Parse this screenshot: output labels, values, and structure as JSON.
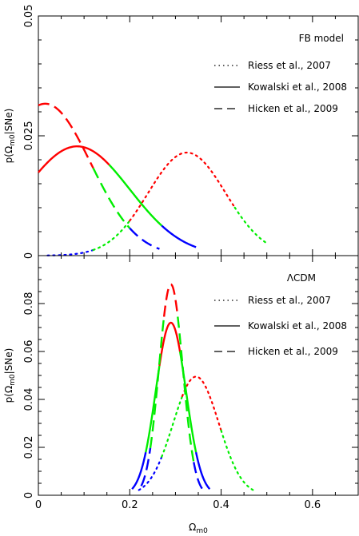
{
  "chart_data": [
    {
      "type": "line",
      "panel_label": "FB model",
      "ylabel": "p(Ω_m0|SNe)",
      "xlim": [
        0,
        0.7
      ],
      "ylim": [
        0,
        0.05
      ],
      "y_ticks": [
        "0",
        "0.025",
        "0.05"
      ],
      "x_ticks": [],
      "legend": [
        {
          "label": "Riess et al., 2007",
          "style": "dotted"
        },
        {
          "label": "Kowalski et al., 2008",
          "style": "solid"
        },
        {
          "label": "Hicken et al., 2009",
          "style": "dashed"
        }
      ],
      "series": [
        {
          "style": "dotted",
          "mean": 0.325,
          "sigma": 0.085,
          "peak": 0.0215,
          "xmin": 0.02,
          "xmax": 0.5,
          "segments": [
            {
              "from": 0.02,
              "to": 0.12,
              "color": "#0000ff"
            },
            {
              "from": 0.12,
              "to": 0.2,
              "color": "#00ee00"
            },
            {
              "from": 0.2,
              "to": 0.43,
              "color": "#ff0000"
            },
            {
              "from": 0.43,
              "to": 0.5,
              "color": "#00ee00"
            }
          ]
        },
        {
          "style": "solid",
          "mean": 0.085,
          "sigma": 0.115,
          "peak": 0.0228,
          "xmin": 0.0,
          "xmax": 0.345,
          "segments": [
            {
              "from": 0.0,
              "to": 0.155,
              "color": "#ff0000"
            },
            {
              "from": 0.155,
              "to": 0.27,
              "color": "#00ee00"
            },
            {
              "from": 0.27,
              "to": 0.345,
              "color": "#0000ff"
            }
          ]
        },
        {
          "style": "dashed",
          "mean": 0.015,
          "sigma": 0.1,
          "peak": 0.0317,
          "xmin": 0.0,
          "xmax": 0.265,
          "segments": [
            {
              "from": 0.0,
              "to": 0.12,
              "color": "#ff0000"
            },
            {
              "from": 0.12,
              "to": 0.2,
              "color": "#00ee00"
            },
            {
              "from": 0.2,
              "to": 0.265,
              "color": "#0000ff"
            }
          ]
        }
      ]
    },
    {
      "type": "line",
      "panel_label": "ΛCDM",
      "ylabel": "p(Ω_m0|SNe)",
      "xlabel": "Ω_m0",
      "xlim": [
        0,
        0.7
      ],
      "ylim": [
        0,
        0.1
      ],
      "y_ticks": [
        "0",
        "0.02",
        "0.04",
        "0.06",
        "0.08"
      ],
      "x_ticks": [
        "0",
        "0.2",
        "0.4",
        "0.6"
      ],
      "legend": [
        {
          "label": "Riess et al., 2007",
          "style": "dotted"
        },
        {
          "label": "Kowalski et al., 2008",
          "style": "solid"
        },
        {
          "label": "Hicken et al., 2009",
          "style": "dashed"
        }
      ],
      "series": [
        {
          "style": "dotted",
          "mean": 0.345,
          "sigma": 0.05,
          "peak": 0.0495,
          "xmin": 0.22,
          "xmax": 0.47,
          "segments": [
            {
              "from": 0.22,
              "to": 0.27,
              "color": "#0000ff"
            },
            {
              "from": 0.27,
              "to": 0.315,
              "color": "#00ee00"
            },
            {
              "from": 0.315,
              "to": 0.4,
              "color": "#ff0000"
            },
            {
              "from": 0.4,
              "to": 0.47,
              "color": "#00ee00"
            }
          ]
        },
        {
          "style": "solid",
          "mean": 0.29,
          "sigma": 0.033,
          "peak": 0.072,
          "xmin": 0.205,
          "xmax": 0.375,
          "segments": [
            {
              "from": 0.205,
              "to": 0.235,
              "color": "#0000ff"
            },
            {
              "from": 0.235,
              "to": 0.265,
              "color": "#00ee00"
            },
            {
              "from": 0.265,
              "to": 0.31,
              "color": "#ff0000"
            },
            {
              "from": 0.31,
              "to": 0.345,
              "color": "#00ee00"
            },
            {
              "from": 0.345,
              "to": 0.375,
              "color": "#0000ff"
            }
          ]
        },
        {
          "style": "dashed",
          "mean": 0.29,
          "sigma": 0.026,
          "peak": 0.088,
          "xmin": 0.225,
          "xmax": 0.36,
          "segments": [
            {
              "from": 0.225,
              "to": 0.245,
              "color": "#0000ff"
            },
            {
              "from": 0.245,
              "to": 0.275,
              "color": "#00ee00"
            },
            {
              "from": 0.275,
              "to": 0.305,
              "color": "#ff0000"
            },
            {
              "from": 0.305,
              "to": 0.34,
              "color": "#00ee00"
            },
            {
              "from": 0.34,
              "to": 0.36,
              "color": "#0000ff"
            }
          ]
        }
      ]
    }
  ]
}
